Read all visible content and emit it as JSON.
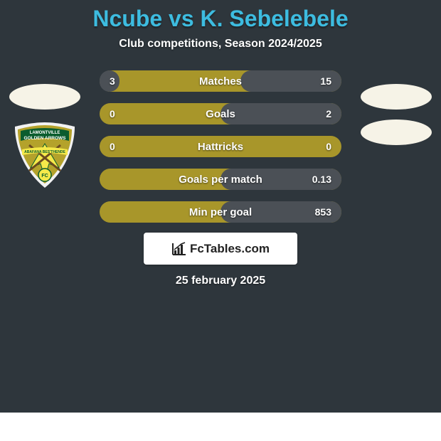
{
  "page": {
    "background_color": "#2e363c",
    "title_color": "#3dbce0",
    "text_color": "#ffffff"
  },
  "header": {
    "title": "Ncube vs K. Sebelebele",
    "title_fontsize": 32,
    "subtitle": "Club competitions, Season 2024/2025",
    "subtitle_fontsize": 16
  },
  "silhouette": {
    "color": "#f6f3e7"
  },
  "badge": {
    "shield_fill": "#b4a22b",
    "shield_stroke": "#f2f2f2",
    "banner_fill": "#0a5c2e",
    "banner_text_top": "LAMONTVILLE",
    "banner_text_mid": "GOLDEN ARROWS",
    "arrow_color": "#f5e94a",
    "spear_color": "#0a5c2e",
    "ribbon_text": "ABAFANA BES'THENDE",
    "fc_text": "FC"
  },
  "comparison": {
    "bar_track_color": "#a8962a",
    "bar_fill_color": "#4b5056",
    "bar_label_fontsize": 15,
    "bar_value_fontsize": 14,
    "bar_gap": 16,
    "rows": [
      {
        "label": "Matches",
        "left_text": "3",
        "right_text": "15",
        "left_pct": 16.7,
        "right_pct": 83.3
      },
      {
        "label": "Goals",
        "left_text": "0",
        "right_text": "2",
        "left_pct": 0,
        "right_pct": 100
      },
      {
        "label": "Hattricks",
        "left_text": "0",
        "right_text": "0",
        "left_pct": 0,
        "right_pct": 0
      },
      {
        "label": "Goals per match",
        "left_text": "",
        "right_text": "0.13",
        "left_pct": 0,
        "right_pct": 100
      },
      {
        "label": "Min per goal",
        "left_text": "",
        "right_text": "853",
        "left_pct": 0,
        "right_pct": 100
      }
    ]
  },
  "logo": {
    "text": "FcTables.com",
    "fontsize": 17,
    "icon_color": "#222222"
  },
  "footer": {
    "date": "25 february 2025",
    "fontsize": 16
  }
}
